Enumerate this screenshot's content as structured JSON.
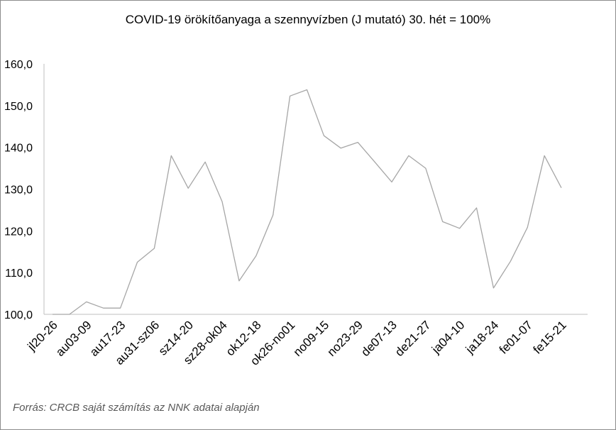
{
  "title": "COVID-19 örökítőanyaga a szennyvízben (J mutató) 30. hét = 100%",
  "source": "Forrás: CRCB saját számítás az NNK adatai alapján",
  "chart_data": {
    "type": "line",
    "title": "COVID-19 örökítőanyaga a szennyvízben (J mutató) 30. hét = 100%",
    "xlabel": "",
    "ylabel": "",
    "ylim": [
      100,
      160
    ],
    "yticks": [
      "100,0",
      "110,0",
      "120,0",
      "130,0",
      "140,0",
      "150,0",
      "160,0"
    ],
    "ytick_values": [
      100,
      110,
      120,
      130,
      140,
      150,
      160
    ],
    "grid": false,
    "line_color": "#a6a6a6",
    "xtick_labels": [
      "jl20-26",
      "au03-09",
      "au17-23",
      "au31-sz06",
      "sz14-20",
      "sz28-ok04",
      "ok12-18",
      "ok26-no01",
      "no09-15",
      "no23-29",
      "de07-13",
      "de21-27",
      "ja04-10",
      "ja18-24",
      "fe01-07",
      "fe15-21"
    ],
    "values": [
      100.0,
      100.0,
      103.0,
      101.5,
      101.5,
      112.5,
      115.8,
      138.0,
      130.2,
      136.5,
      127.0,
      108.0,
      114.0,
      123.8,
      152.3,
      153.8,
      142.8,
      139.8,
      141.2,
      136.5,
      131.7,
      138.0,
      135.0,
      122.2,
      120.6,
      125.5,
      106.3,
      112.7,
      120.8,
      138.0,
      130.3
    ]
  }
}
